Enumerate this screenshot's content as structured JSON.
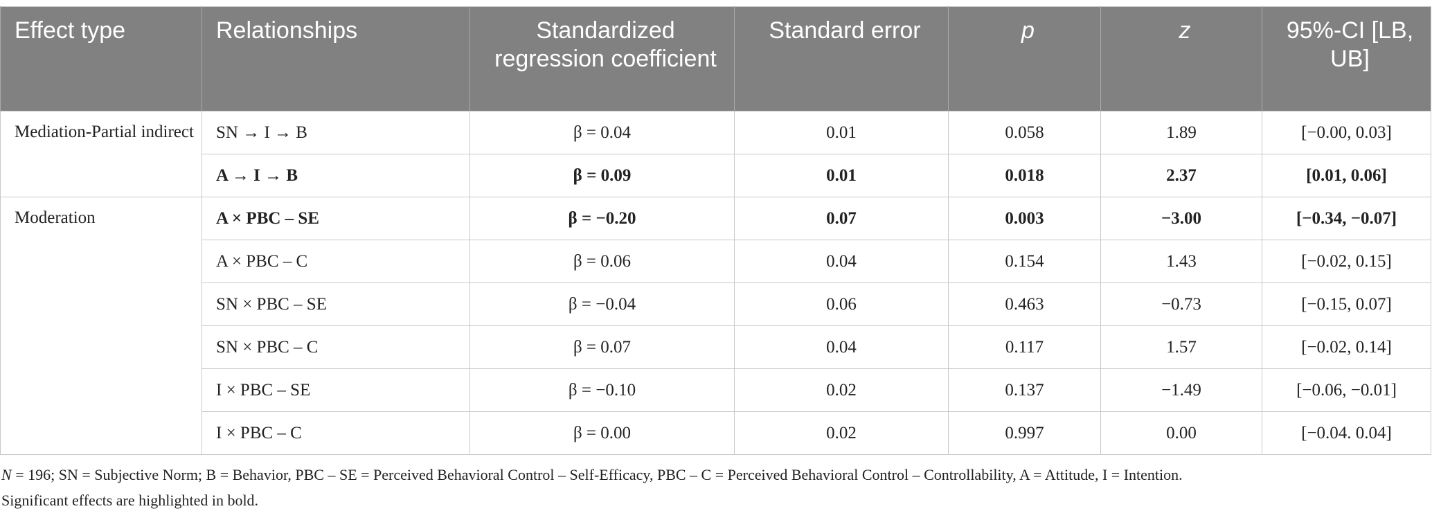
{
  "table": {
    "header": [
      "Effect type",
      "Relationships",
      "Standardized regression coefficient",
      "Standard error",
      "p",
      "z",
      "95%-CI [LB, UB]"
    ],
    "header_italic": [
      false,
      false,
      false,
      false,
      true,
      true,
      false
    ],
    "groups": [
      {
        "effect_type": "Mediation-Partial indirect",
        "rows": [
          {
            "relationship": "SN → I → B",
            "beta": "β = 0.04",
            "se": "0.01",
            "p": "0.058",
            "z": "1.89",
            "ci": "[−0.00, 0.03]",
            "bold": false
          },
          {
            "relationship": "A → I → B",
            "beta": "β = 0.09",
            "se": "0.01",
            "p": "0.018",
            "z": "2.37",
            "ci": "[0.01, 0.06]",
            "bold": true
          }
        ]
      },
      {
        "effect_type": "Moderation",
        "rows": [
          {
            "relationship": "A × PBC – SE",
            "beta": "β = −0.20",
            "se": "0.07",
            "p": "0.003",
            "z": "−3.00",
            "ci": "[−0.34, −0.07]",
            "bold": true
          },
          {
            "relationship": "A × PBC – C",
            "beta": "β = 0.06",
            "se": "0.04",
            "p": "0.154",
            "z": "1.43",
            "ci": "[−0.02, 0.15]",
            "bold": false
          },
          {
            "relationship": "SN × PBC – SE",
            "beta": "β = −0.04",
            "se": "0.06",
            "p": "0.463",
            "z": "−0.73",
            "ci": "[−0.15, 0.07]",
            "bold": false
          },
          {
            "relationship": "SN × PBC – C",
            "beta": "β = 0.07",
            "se": "0.04",
            "p": "0.117",
            "z": "1.57",
            "ci": "[−0.02, 0.14]",
            "bold": false
          },
          {
            "relationship": "I × PBC – SE",
            "beta": "β = −0.10",
            "se": "0.02",
            "p": "0.137",
            "z": "−1.49",
            "ci": "[−0.06, −0.01]",
            "bold": false
          },
          {
            "relationship": "I × PBC – C",
            "beta": "β = 0.00",
            "se": "0.02",
            "p": "0.997",
            "z": "0.00",
            "ci": "[−0.04. 0.04]",
            "bold": false
          }
        ]
      }
    ]
  },
  "footnote": {
    "symbol": "N",
    "line1": " = 196; SN = Subjective Norm; B = Behavior, PBC – SE = Perceived Behavioral Control – Self-Efficacy, PBC – C = Perceived Behavioral Control – Controllability, A = Attitude, I = Intention.",
    "line2": "Significant effects are highlighted in bold."
  }
}
